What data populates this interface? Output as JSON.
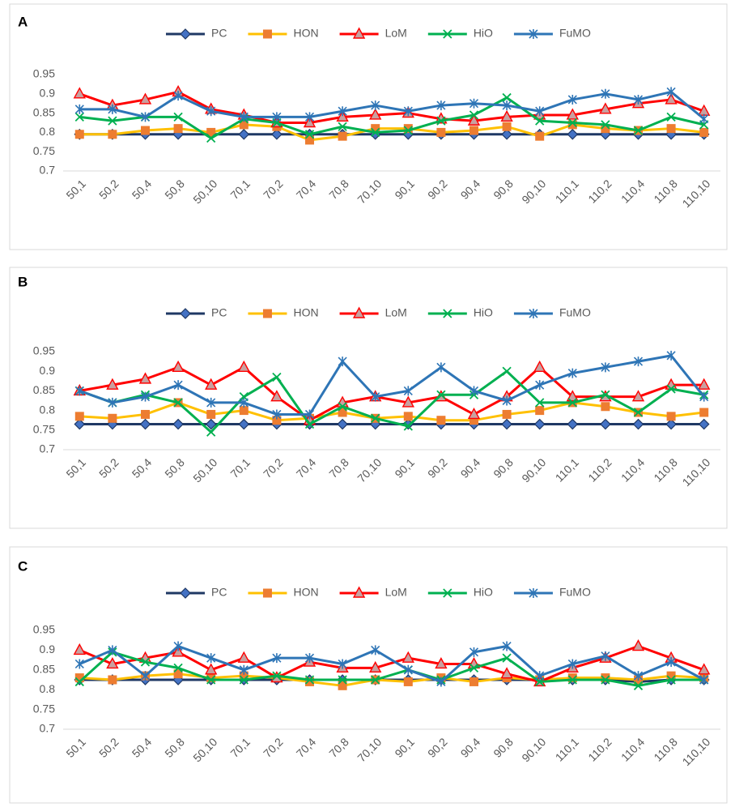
{
  "chart_data": [
    {
      "type": "line",
      "title": "A",
      "categories": [
        "50,1",
        "50,2",
        "50,4",
        "50,8",
        "50,10",
        "70,1",
        "70,2",
        "70,4",
        "70,8",
        "70,10",
        "90,1",
        "90,2",
        "90,4",
        "90,8",
        "90,10",
        "110,1",
        "110,2",
        "110,4",
        "110,8",
        "110,10"
      ],
      "ylim": [
        0.7,
        0.95
      ],
      "yticks": [
        0.7,
        0.75,
        0.8,
        0.85,
        0.9,
        0.95
      ],
      "grid": false,
      "legend": "top",
      "series": [
        {
          "name": "PC",
          "color": "#1f3864",
          "marker": "diamond",
          "marker_color": "#4472c4",
          "values": [
            0.795,
            0.795,
            0.795,
            0.795,
            0.795,
            0.795,
            0.795,
            0.795,
            0.795,
            0.795,
            0.795,
            0.795,
            0.795,
            0.795,
            0.795,
            0.795,
            0.795,
            0.795,
            0.795,
            0.795
          ]
        },
        {
          "name": "HON",
          "color": "#ffc000",
          "marker": "square",
          "marker_color": "#ed7d31",
          "values": [
            0.795,
            0.795,
            0.805,
            0.81,
            0.8,
            0.82,
            0.815,
            0.78,
            0.79,
            0.81,
            0.81,
            0.8,
            0.805,
            0.815,
            0.79,
            0.82,
            0.81,
            0.805,
            0.81,
            0.8
          ]
        },
        {
          "name": "LoM",
          "color": "#ff0000",
          "marker": "triangle",
          "marker_color": "#c9a0a0",
          "values": [
            0.9,
            0.87,
            0.885,
            0.905,
            0.86,
            0.845,
            0.825,
            0.825,
            0.84,
            0.845,
            0.85,
            0.835,
            0.83,
            0.84,
            0.845,
            0.845,
            0.86,
            0.875,
            0.885,
            0.855
          ]
        },
        {
          "name": "HiO",
          "color": "#00b050",
          "marker": "x",
          "marker_color": "#00b050",
          "values": [
            0.84,
            0.83,
            0.84,
            0.84,
            0.785,
            0.835,
            0.825,
            0.795,
            0.815,
            0.8,
            0.805,
            0.83,
            0.845,
            0.89,
            0.83,
            0.825,
            0.82,
            0.805,
            0.84,
            0.82
          ]
        },
        {
          "name": "FuMO",
          "color": "#2e75b6",
          "marker": "star",
          "marker_color": "#2e75b6",
          "values": [
            0.86,
            0.86,
            0.84,
            0.895,
            0.855,
            0.84,
            0.84,
            0.84,
            0.855,
            0.87,
            0.855,
            0.87,
            0.875,
            0.87,
            0.855,
            0.885,
            0.9,
            0.885,
            0.905,
            0.835
          ]
        }
      ]
    },
    {
      "type": "line",
      "title": "B",
      "categories": [
        "50,1",
        "50,2",
        "50,4",
        "50,8",
        "50,10",
        "70,1",
        "70,2",
        "70,4",
        "70,8",
        "70,10",
        "90,1",
        "90,2",
        "90,4",
        "90,8",
        "90,10",
        "110,1",
        "110,2",
        "110,4",
        "110,8",
        "110,10"
      ],
      "ylim": [
        0.7,
        0.95
      ],
      "yticks": [
        0.7,
        0.75,
        0.8,
        0.85,
        0.9,
        0.95
      ],
      "grid": false,
      "legend": "top",
      "series": [
        {
          "name": "PC",
          "color": "#1f3864",
          "marker": "diamond",
          "marker_color": "#4472c4",
          "values": [
            0.765,
            0.765,
            0.765,
            0.765,
            0.765,
            0.765,
            0.765,
            0.765,
            0.765,
            0.765,
            0.765,
            0.765,
            0.765,
            0.765,
            0.765,
            0.765,
            0.765,
            0.765,
            0.765,
            0.765
          ]
        },
        {
          "name": "HON",
          "color": "#ffc000",
          "marker": "square",
          "marker_color": "#ed7d31",
          "values": [
            0.785,
            0.78,
            0.79,
            0.82,
            0.79,
            0.8,
            0.775,
            0.78,
            0.795,
            0.78,
            0.785,
            0.775,
            0.775,
            0.79,
            0.8,
            0.82,
            0.81,
            0.795,
            0.785,
            0.795
          ]
        },
        {
          "name": "LoM",
          "color": "#ff0000",
          "marker": "triangle",
          "marker_color": "#c9a0a0",
          "values": [
            0.85,
            0.865,
            0.88,
            0.91,
            0.865,
            0.91,
            0.835,
            0.775,
            0.82,
            0.835,
            0.82,
            0.835,
            0.79,
            0.835,
            0.91,
            0.835,
            0.835,
            0.835,
            0.865,
            0.865
          ]
        },
        {
          "name": "HiO",
          "color": "#00b050",
          "marker": "x",
          "marker_color": "#00b050",
          "values": [
            0.85,
            0.82,
            0.84,
            0.82,
            0.745,
            0.835,
            0.885,
            0.765,
            0.81,
            0.78,
            0.76,
            0.84,
            0.84,
            0.9,
            0.82,
            0.82,
            0.84,
            0.795,
            0.855,
            0.84
          ]
        },
        {
          "name": "FuMO",
          "color": "#2e75b6",
          "marker": "star",
          "marker_color": "#2e75b6",
          "values": [
            0.85,
            0.82,
            0.835,
            0.865,
            0.82,
            0.82,
            0.79,
            0.79,
            0.925,
            0.835,
            0.85,
            0.91,
            0.85,
            0.825,
            0.865,
            0.895,
            0.91,
            0.925,
            0.94,
            0.835
          ]
        }
      ]
    },
    {
      "type": "line",
      "title": "C",
      "categories": [
        "50,1",
        "50,2",
        "50,4",
        "50,8",
        "50,10",
        "70,1",
        "70,2",
        "70,4",
        "70,8",
        "70,10",
        "90,1",
        "90,2",
        "90,4",
        "90,8",
        "90,10",
        "110,1",
        "110,2",
        "110,4",
        "110,8",
        "110,10"
      ],
      "ylim": [
        0.7,
        0.95
      ],
      "yticks": [
        0.7,
        0.75,
        0.8,
        0.85,
        0.9,
        0.95
      ],
      "grid": false,
      "legend": "top",
      "series": [
        {
          "name": "PC",
          "color": "#1f3864",
          "marker": "diamond",
          "marker_color": "#4472c4",
          "values": [
            0.825,
            0.825,
            0.825,
            0.825,
            0.825,
            0.825,
            0.825,
            0.825,
            0.825,
            0.825,
            0.825,
            0.825,
            0.825,
            0.825,
            0.825,
            0.825,
            0.825,
            0.82,
            0.825,
            0.825
          ]
        },
        {
          "name": "HON",
          "color": "#ffc000",
          "marker": "square",
          "marker_color": "#ed7d31",
          "values": [
            0.83,
            0.825,
            0.835,
            0.84,
            0.83,
            0.835,
            0.83,
            0.82,
            0.81,
            0.825,
            0.82,
            0.83,
            0.82,
            0.83,
            0.825,
            0.83,
            0.83,
            0.825,
            0.835,
            0.83
          ]
        },
        {
          "name": "LoM",
          "color": "#ff0000",
          "marker": "triangle",
          "marker_color": "#c9a0a0",
          "values": [
            0.9,
            0.865,
            0.88,
            0.895,
            0.85,
            0.88,
            0.83,
            0.87,
            0.855,
            0.855,
            0.88,
            0.865,
            0.865,
            0.84,
            0.82,
            0.855,
            0.88,
            0.91,
            0.88,
            0.85
          ]
        },
        {
          "name": "HiO",
          "color": "#00b050",
          "marker": "x",
          "marker_color": "#00b050",
          "values": [
            0.82,
            0.895,
            0.87,
            0.855,
            0.825,
            0.825,
            0.835,
            0.825,
            0.825,
            0.825,
            0.85,
            0.825,
            0.855,
            0.88,
            0.82,
            0.825,
            0.825,
            0.81,
            0.825,
            0.825
          ]
        },
        {
          "name": "FuMO",
          "color": "#2e75b6",
          "marker": "star",
          "marker_color": "#2e75b6",
          "values": [
            0.865,
            0.9,
            0.835,
            0.91,
            0.88,
            0.85,
            0.88,
            0.88,
            0.865,
            0.9,
            0.85,
            0.82,
            0.895,
            0.91,
            0.835,
            0.865,
            0.885,
            0.835,
            0.87,
            0.825
          ]
        }
      ]
    }
  ]
}
